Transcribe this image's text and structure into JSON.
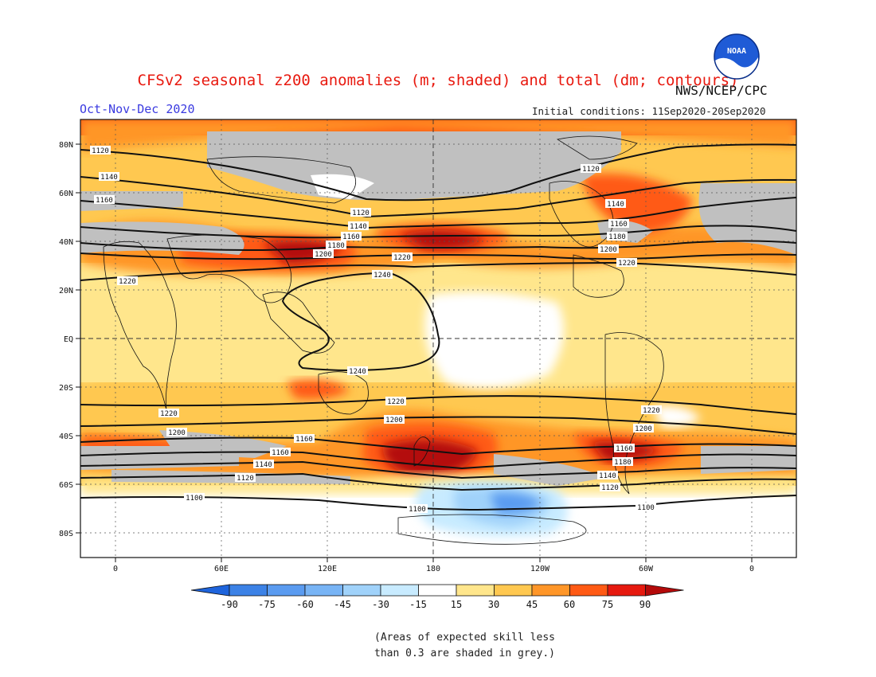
{
  "header": {
    "title": "CFSv2 seasonal z200 anomalies (m; shaded) and total (dm; contours)",
    "season": "Oct-Nov-Dec 2020",
    "agency": "NWS/NCEP/CPC",
    "initial_conditions": "Initial conditions: 11Sep2020-20Sep2020",
    "logo_text": "NOAA"
  },
  "map": {
    "lat_labels": [
      "80N",
      "60N",
      "40N",
      "20N",
      "EQ",
      "20S",
      "40S",
      "60S",
      "80S"
    ],
    "lon_labels": [
      "0",
      "60E",
      "120E",
      "180",
      "120W",
      "60W",
      "0"
    ],
    "contours": [
      {
        "value": "1120",
        "labels": [
          "1120",
          "1120",
          "1120"
        ]
      },
      {
        "value": "1140",
        "labels": [
          "1140",
          "1140",
          "1140"
        ]
      },
      {
        "value": "1160",
        "labels": [
          "1160",
          "1160",
          "1160"
        ]
      },
      {
        "value": "1180",
        "labels": [
          "1180",
          "1180"
        ]
      },
      {
        "value": "1200",
        "labels": [
          "1200",
          "1200"
        ]
      },
      {
        "value": "1220",
        "labels": [
          "1220",
          "1220",
          "1220"
        ]
      },
      {
        "value": "1240",
        "labels": [
          "1240",
          "1240"
        ]
      },
      {
        "value": "1100",
        "labels": [
          "1100",
          "1100",
          "1100"
        ]
      }
    ]
  },
  "legend": {
    "labels": [
      "-90",
      "-75",
      "-60",
      "-45",
      "-30",
      "-15",
      "15",
      "30",
      "45",
      "60",
      "75",
      "90"
    ],
    "colors": [
      "#1e64dc",
      "#3c82e6",
      "#5a9bf0",
      "#78b4f5",
      "#a0d2fa",
      "#c8ebff",
      "#ffffff",
      "#ffe68c",
      "#ffc850",
      "#ff9628",
      "#ff5a14",
      "#e6190f",
      "#b40a0a"
    ],
    "skill_color": "#c0c0c0"
  },
  "footnote": {
    "line1": "(Areas of expected skill less",
    "line2": "than 0.3 are shaded in grey.)"
  }
}
